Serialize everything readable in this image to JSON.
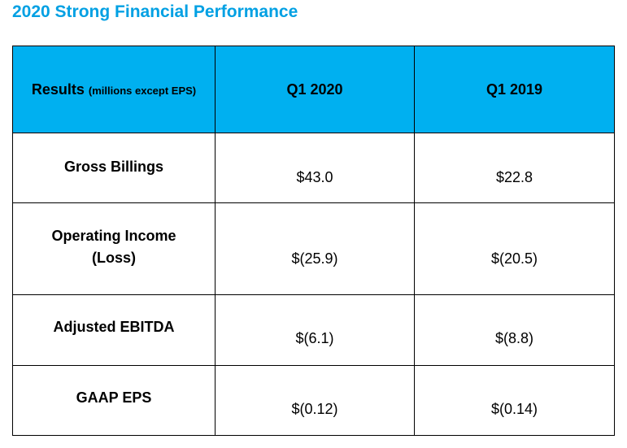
{
  "title": "2020 Strong Financial Performance",
  "table": {
    "header": {
      "results_label": "Results",
      "results_note": "(millions except EPS)",
      "col1": "Q1 2020",
      "col2": "Q1 2019"
    },
    "rows": [
      {
        "label": "Gross Billings",
        "q1_2020": "$43.0",
        "q1_2019": "$22.8"
      },
      {
        "label_line1": "Operating Income",
        "label_line2": "(Loss)",
        "q1_2020": "$(25.9)",
        "q1_2019": "$(20.5)"
      },
      {
        "label": "Adjusted EBITDA",
        "q1_2020": "$(6.1)",
        "q1_2019": "$(8.8)"
      },
      {
        "label": "GAAP EPS",
        "q1_2020": "$(0.12)",
        "q1_2019": "$(0.14)"
      }
    ]
  },
  "colors": {
    "title": "#00a0e3",
    "header_bg": "#00b0f0",
    "border": "#000000"
  }
}
